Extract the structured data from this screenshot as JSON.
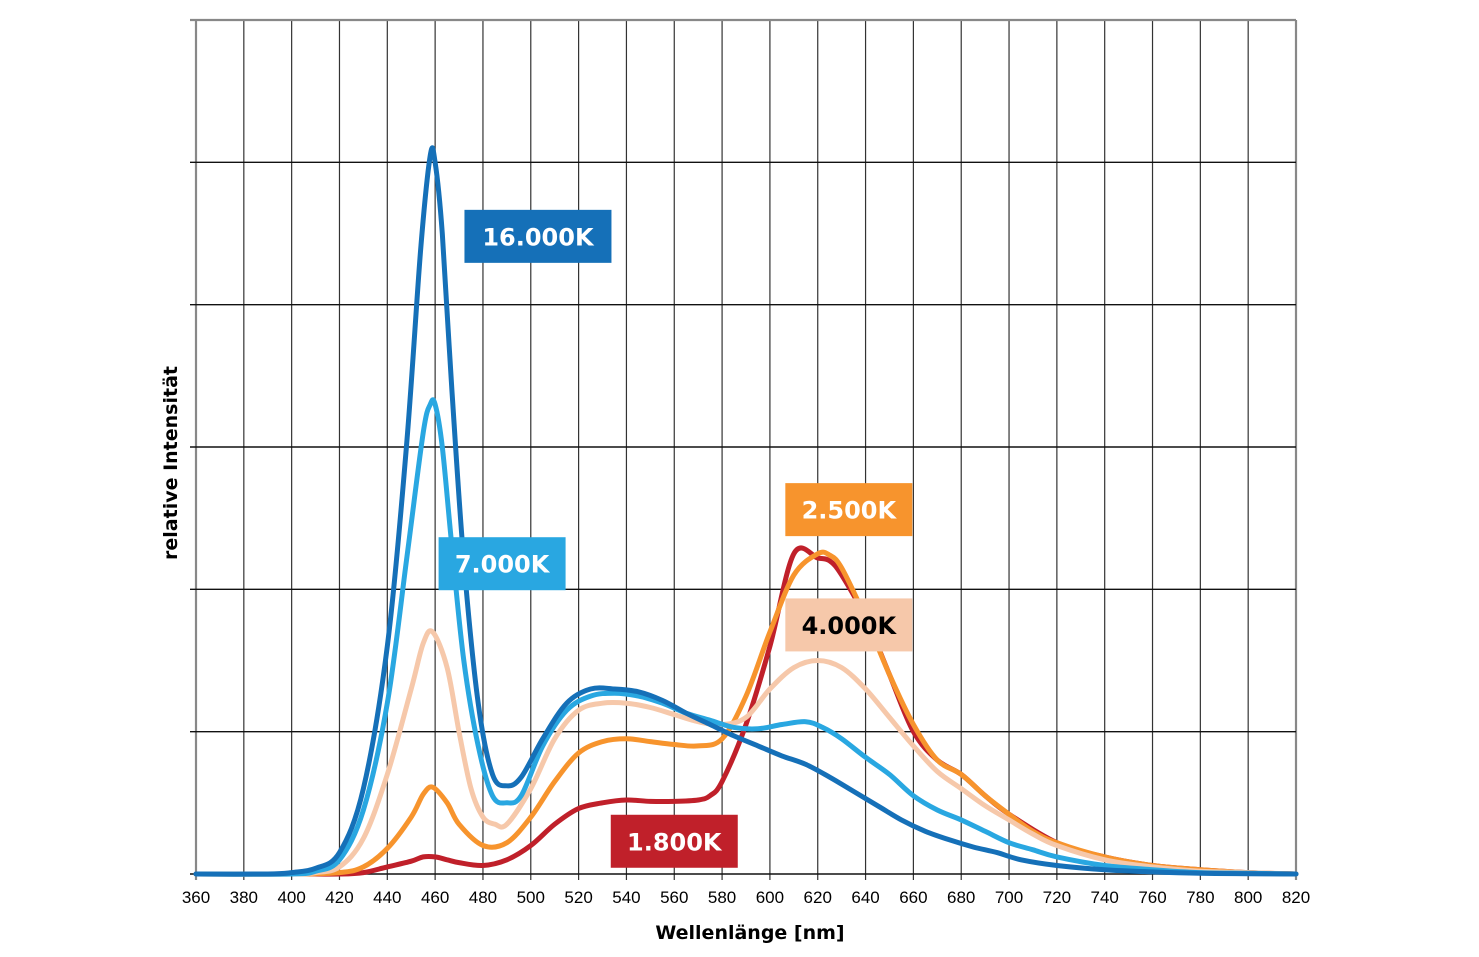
{
  "chart_data": {
    "type": "line",
    "title": "",
    "xlabel": "Wellenlänge [nm]",
    "ylabel": "relative Intensität",
    "xlim": [
      360,
      820
    ],
    "ylim": [
      0,
      6
    ],
    "x_ticks": [
      360,
      380,
      400,
      420,
      440,
      460,
      480,
      500,
      520,
      540,
      560,
      580,
      600,
      620,
      640,
      660,
      680,
      700,
      720,
      740,
      760,
      780,
      800,
      820
    ],
    "y_gridlines": [
      0,
      1,
      2,
      3,
      4,
      5,
      6
    ],
    "y_tick_labels_shown": false,
    "grid": true,
    "legend": "inline-labels",
    "series": [
      {
        "name": "1.800K",
        "color": "#c0202a",
        "label_text_color": "#ffffff",
        "label_anchor": [
          560,
          0.23
        ],
        "points": [
          [
            360,
            0
          ],
          [
            400,
            0
          ],
          [
            420,
            0
          ],
          [
            430,
            0.01
          ],
          [
            440,
            0.05
          ],
          [
            450,
            0.09
          ],
          [
            455,
            0.12
          ],
          [
            460,
            0.12
          ],
          [
            465,
            0.1
          ],
          [
            470,
            0.08
          ],
          [
            480,
            0.06
          ],
          [
            490,
            0.1
          ],
          [
            500,
            0.2
          ],
          [
            510,
            0.35
          ],
          [
            520,
            0.46
          ],
          [
            530,
            0.5
          ],
          [
            540,
            0.52
          ],
          [
            550,
            0.51
          ],
          [
            560,
            0.51
          ],
          [
            570,
            0.52
          ],
          [
            575,
            0.55
          ],
          [
            580,
            0.65
          ],
          [
            590,
            1.05
          ],
          [
            600,
            1.6
          ],
          [
            610,
            2.25
          ],
          [
            620,
            2.22
          ],
          [
            625,
            2.2
          ],
          [
            630,
            2.1
          ],
          [
            640,
            1.8
          ],
          [
            650,
            1.4
          ],
          [
            660,
            1.0
          ],
          [
            670,
            0.8
          ],
          [
            680,
            0.7
          ],
          [
            690,
            0.55
          ],
          [
            700,
            0.42
          ],
          [
            720,
            0.22
          ],
          [
            740,
            0.12
          ],
          [
            760,
            0.06
          ],
          [
            780,
            0.03
          ],
          [
            800,
            0.01
          ],
          [
            820,
            0
          ]
        ]
      },
      {
        "name": "2.500K",
        "color": "#f7942d",
        "label_text_color": "#ffffff",
        "label_anchor": [
          633,
          2.56
        ],
        "points": [
          [
            360,
            0
          ],
          [
            400,
            0
          ],
          [
            420,
            0.01
          ],
          [
            430,
            0.05
          ],
          [
            440,
            0.18
          ],
          [
            450,
            0.4
          ],
          [
            455,
            0.56
          ],
          [
            459,
            0.61
          ],
          [
            465,
            0.5
          ],
          [
            470,
            0.35
          ],
          [
            480,
            0.2
          ],
          [
            490,
            0.22
          ],
          [
            500,
            0.4
          ],
          [
            510,
            0.65
          ],
          [
            520,
            0.85
          ],
          [
            530,
            0.93
          ],
          [
            540,
            0.95
          ],
          [
            550,
            0.93
          ],
          [
            560,
            0.91
          ],
          [
            570,
            0.9
          ],
          [
            580,
            0.95
          ],
          [
            590,
            1.25
          ],
          [
            600,
            1.7
          ],
          [
            610,
            2.1
          ],
          [
            620,
            2.25
          ],
          [
            625,
            2.24
          ],
          [
            630,
            2.15
          ],
          [
            640,
            1.8
          ],
          [
            650,
            1.4
          ],
          [
            660,
            1.05
          ],
          [
            670,
            0.8
          ],
          [
            680,
            0.7
          ],
          [
            690,
            0.55
          ],
          [
            700,
            0.42
          ],
          [
            710,
            0.3
          ],
          [
            720,
            0.22
          ],
          [
            740,
            0.12
          ],
          [
            760,
            0.06
          ],
          [
            780,
            0.03
          ],
          [
            800,
            0.01
          ],
          [
            820,
            0
          ]
        ]
      },
      {
        "name": "4.000K",
        "color": "#f6c8aa",
        "label_text_color": "#000000",
        "label_anchor": [
          633,
          1.75
        ],
        "points": [
          [
            360,
            0
          ],
          [
            400,
            0
          ],
          [
            410,
            0.01
          ],
          [
            420,
            0.05
          ],
          [
            430,
            0.25
          ],
          [
            440,
            0.7
          ],
          [
            450,
            1.3
          ],
          [
            455,
            1.62
          ],
          [
            459,
            1.7
          ],
          [
            465,
            1.45
          ],
          [
            470,
            1.0
          ],
          [
            475,
            0.6
          ],
          [
            480,
            0.4
          ],
          [
            485,
            0.35
          ],
          [
            490,
            0.35
          ],
          [
            500,
            0.6
          ],
          [
            510,
            0.95
          ],
          [
            520,
            1.15
          ],
          [
            530,
            1.2
          ],
          [
            540,
            1.2
          ],
          [
            550,
            1.17
          ],
          [
            560,
            1.12
          ],
          [
            570,
            1.07
          ],
          [
            580,
            1.05
          ],
          [
            590,
            1.1
          ],
          [
            600,
            1.3
          ],
          [
            610,
            1.45
          ],
          [
            620,
            1.5
          ],
          [
            630,
            1.45
          ],
          [
            640,
            1.3
          ],
          [
            650,
            1.1
          ],
          [
            660,
            0.9
          ],
          [
            670,
            0.72
          ],
          [
            680,
            0.6
          ],
          [
            690,
            0.48
          ],
          [
            700,
            0.38
          ],
          [
            710,
            0.28
          ],
          [
            720,
            0.2
          ],
          [
            740,
            0.1
          ],
          [
            760,
            0.05
          ],
          [
            780,
            0.02
          ],
          [
            800,
            0.01
          ],
          [
            820,
            0
          ]
        ]
      },
      {
        "name": "7.000K",
        "color": "#29a7e1",
        "label_text_color": "#ffffff",
        "label_anchor": [
          488,
          2.18
        ],
        "points": [
          [
            360,
            0
          ],
          [
            400,
            0
          ],
          [
            410,
            0.02
          ],
          [
            420,
            0.1
          ],
          [
            430,
            0.45
          ],
          [
            440,
            1.2
          ],
          [
            448,
            2.2
          ],
          [
            455,
            3.1
          ],
          [
            458,
            3.3
          ],
          [
            460,
            3.3
          ],
          [
            463,
            3.0
          ],
          [
            467,
            2.3
          ],
          [
            472,
            1.5
          ],
          [
            478,
            0.9
          ],
          [
            484,
            0.55
          ],
          [
            490,
            0.5
          ],
          [
            496,
            0.55
          ],
          [
            505,
            0.9
          ],
          [
            515,
            1.15
          ],
          [
            525,
            1.25
          ],
          [
            535,
            1.27
          ],
          [
            545,
            1.25
          ],
          [
            555,
            1.2
          ],
          [
            565,
            1.13
          ],
          [
            575,
            1.08
          ],
          [
            585,
            1.03
          ],
          [
            595,
            1.02
          ],
          [
            605,
            1.05
          ],
          [
            615,
            1.07
          ],
          [
            622,
            1.03
          ],
          [
            630,
            0.95
          ],
          [
            640,
            0.82
          ],
          [
            650,
            0.7
          ],
          [
            660,
            0.55
          ],
          [
            670,
            0.45
          ],
          [
            680,
            0.38
          ],
          [
            690,
            0.3
          ],
          [
            700,
            0.22
          ],
          [
            710,
            0.17
          ],
          [
            720,
            0.12
          ],
          [
            740,
            0.06
          ],
          [
            760,
            0.03
          ],
          [
            780,
            0.01
          ],
          [
            800,
            0.005
          ],
          [
            820,
            0
          ]
        ]
      },
      {
        "name": "16.000K",
        "color": "#1570b8",
        "label_text_color": "#ffffff",
        "label_anchor": [
          503,
          4.48
        ],
        "points": [
          [
            360,
            0
          ],
          [
            390,
            0
          ],
          [
            400,
            0.01
          ],
          [
            410,
            0.04
          ],
          [
            420,
            0.15
          ],
          [
            430,
            0.6
          ],
          [
            440,
            1.6
          ],
          [
            448,
            3.0
          ],
          [
            454,
            4.4
          ],
          [
            458,
            5.05
          ],
          [
            460,
            5.0
          ],
          [
            463,
            4.5
          ],
          [
            467,
            3.4
          ],
          [
            472,
            2.2
          ],
          [
            478,
            1.2
          ],
          [
            484,
            0.7
          ],
          [
            490,
            0.62
          ],
          [
            496,
            0.68
          ],
          [
            505,
            0.95
          ],
          [
            515,
            1.2
          ],
          [
            525,
            1.3
          ],
          [
            535,
            1.3
          ],
          [
            545,
            1.28
          ],
          [
            555,
            1.22
          ],
          [
            565,
            1.13
          ],
          [
            575,
            1.05
          ],
          [
            585,
            0.97
          ],
          [
            595,
            0.9
          ],
          [
            605,
            0.83
          ],
          [
            615,
            0.77
          ],
          [
            625,
            0.68
          ],
          [
            635,
            0.58
          ],
          [
            645,
            0.48
          ],
          [
            655,
            0.38
          ],
          [
            665,
            0.3
          ],
          [
            675,
            0.24
          ],
          [
            685,
            0.19
          ],
          [
            695,
            0.15
          ],
          [
            705,
            0.1
          ],
          [
            720,
            0.06
          ],
          [
            740,
            0.03
          ],
          [
            760,
            0.015
          ],
          [
            780,
            0.005
          ],
          [
            800,
            0.002
          ],
          [
            820,
            0
          ]
        ]
      }
    ]
  }
}
